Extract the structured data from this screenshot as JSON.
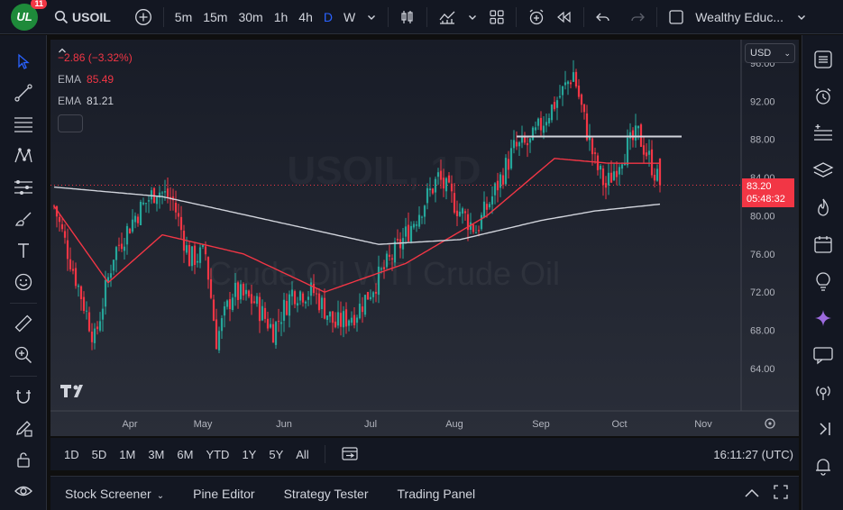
{
  "header": {
    "avatar_text": "UL",
    "notification_count": "11",
    "symbol": "USOIL",
    "timeframes": [
      "5m",
      "15m",
      "30m",
      "1h",
      "4h",
      "D",
      "W"
    ],
    "active_timeframe": "D",
    "layout_name": "Wealthy Educ..."
  },
  "legend": {
    "change": "−2.86 (−3.32%)",
    "ema_label": "EMA",
    "ema1_value": "85.49",
    "ema2_value": "81.21"
  },
  "chart": {
    "currency": "USD",
    "price_labels": [
      "92.00",
      "88.00",
      "84.00",
      "80.00",
      "76.00",
      "72.00",
      "68.00",
      "64.00"
    ],
    "partial_top_label": "96.00",
    "current_price": "83.20",
    "countdown": "05:48:32",
    "months": [
      "Apr",
      "May",
      "Jun",
      "Jul",
      "Aug",
      "Sep",
      "Oct",
      "Nov"
    ],
    "watermark_symbol": "USOIL, 1D",
    "watermark_name": "Crude Oil WTI Crude Oil",
    "colors": {
      "up": "#26a69a",
      "down": "#f23645",
      "ema_fast": "#f23645",
      "ema_slow": "#d1d4dc",
      "background": "#1e222d"
    }
  },
  "chart_data": {
    "type": "candlestick",
    "title": "USOIL",
    "interval": "D",
    "y_range": [
      60.5,
      97.5
    ],
    "y_ticks": [
      64,
      68,
      72,
      76,
      80,
      84,
      88,
      92
    ],
    "x_tick_labels": [
      "Apr",
      "May",
      "Jun",
      "Jul",
      "Aug",
      "Sep",
      "Oct",
      "Nov"
    ],
    "last_price": 83.2,
    "resistance_level": 88.3,
    "price_path": [
      [
        0,
        81.0
      ],
      [
        8,
        73.5
      ],
      [
        15,
        67.0
      ],
      [
        22,
        76.0
      ],
      [
        30,
        80.0
      ],
      [
        38,
        82.8
      ],
      [
        44,
        81.5
      ],
      [
        50,
        75.5
      ],
      [
        56,
        76.0
      ],
      [
        60,
        67.0
      ],
      [
        66,
        72.0
      ],
      [
        74,
        71.0
      ],
      [
        81,
        68.0
      ],
      [
        88,
        72.0
      ],
      [
        96,
        72.0
      ],
      [
        104,
        68.5
      ],
      [
        112,
        70.0
      ],
      [
        120,
        73.5
      ],
      [
        128,
        77.0
      ],
      [
        136,
        81.0
      ],
      [
        142,
        84.0
      ],
      [
        150,
        80.5
      ],
      [
        156,
        78.5
      ],
      [
        162,
        82.0
      ],
      [
        170,
        87.0
      ],
      [
        176,
        87.5
      ],
      [
        182,
        90.5
      ],
      [
        188,
        93.0
      ],
      [
        192,
        95.0
      ],
      [
        196,
        90.0
      ],
      [
        200,
        85.5
      ],
      [
        204,
        83.0
      ],
      [
        210,
        86.5
      ],
      [
        216,
        88.5
      ],
      [
        220,
        86.0
      ],
      [
        224,
        83.2
      ]
    ],
    "series": [
      {
        "name": "EMA",
        "values": [
          [
            0,
            81.0
          ],
          [
            20,
            73.0
          ],
          [
            40,
            78.0
          ],
          [
            70,
            76.0
          ],
          [
            100,
            72.0
          ],
          [
            130,
            75.0
          ],
          [
            160,
            80.0
          ],
          [
            185,
            86.0
          ],
          [
            205,
            85.5
          ],
          [
            224,
            85.49
          ]
        ]
      },
      {
        "name": "EMA",
        "values": [
          [
            0,
            83.0
          ],
          [
            40,
            82.0
          ],
          [
            80,
            79.5
          ],
          [
            120,
            77.0
          ],
          [
            150,
            77.5
          ],
          [
            180,
            79.5
          ],
          [
            200,
            80.5
          ],
          [
            224,
            81.21
          ]
        ]
      }
    ]
  },
  "range_bar": {
    "ranges": [
      "1D",
      "5D",
      "1M",
      "3M",
      "6M",
      "YTD",
      "1Y",
      "5Y",
      "All"
    ],
    "clock": "16:11:27 (UTC)"
  },
  "bottom_panel": {
    "tabs": [
      "Stock Screener",
      "Pine Editor",
      "Strategy Tester",
      "Trading Panel"
    ]
  }
}
